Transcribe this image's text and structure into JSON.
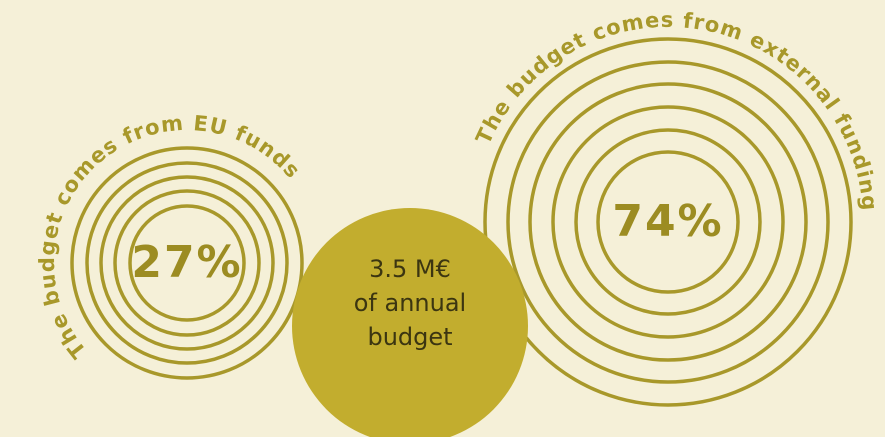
{
  "left": {
    "value": "27%",
    "caption": "The budget comes from EU funds"
  },
  "right": {
    "value": "74%",
    "caption": "The budget comes from external funding"
  },
  "center": {
    "lines": [
      "3.5 M€",
      "of annual",
      "budget"
    ]
  }
}
